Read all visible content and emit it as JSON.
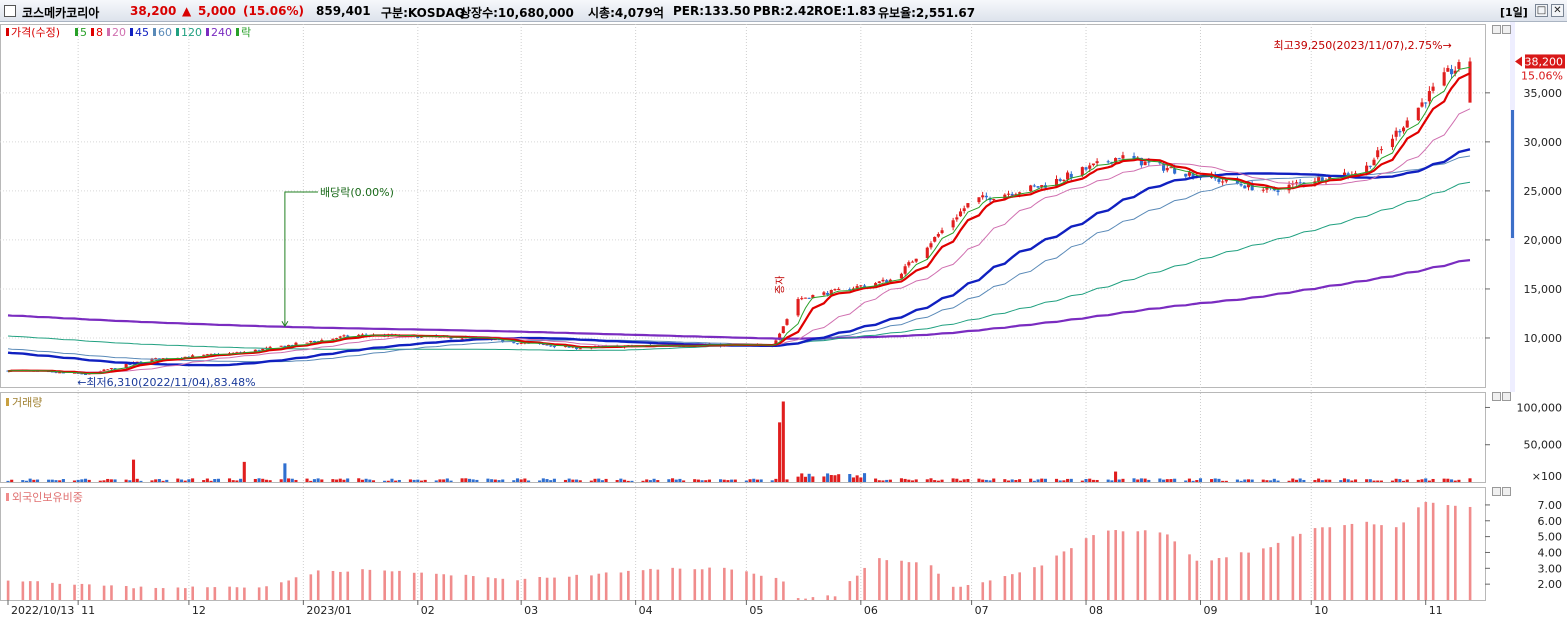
{
  "header": {
    "stock_name": "코스메카코리아",
    "price": "38,200",
    "change_arrow": "▲",
    "change": "5,000",
    "change_pct": "(15.06%)",
    "volume": "859,401",
    "market": "구분:KOSDAQ",
    "shares": "상장수:10,680,000",
    "market_cap": "시총:4,079억",
    "per": "PER:133.50",
    "pbr": "PBR:2.42",
    "roe": "ROE:1.83",
    "holding": "유보율:2,551.67",
    "period": "[1일]",
    "btn_max": "□",
    "btn_close": "✕"
  },
  "colors": {
    "up": "#e01e1e",
    "down": "#2f6fd0",
    "ma5": "#28a028",
    "ma8": "#e00000",
    "ma20": "#d070b0",
    "ma45": "#1020c0",
    "ma60": "#5a8ab8",
    "ma120": "#20a080",
    "ma240": "#7a2cc0",
    "foreign": "#f08c8c"
  },
  "price_panel": {
    "legend": [
      {
        "label": "가격(수정)",
        "color": "#d80000"
      },
      {
        "label": "5",
        "color": "#28a028"
      },
      {
        "label": "8",
        "color": "#e00000"
      },
      {
        "label": "20",
        "color": "#d070b0"
      },
      {
        "label": "45",
        "color": "#1020c0"
      },
      {
        "label": "60",
        "color": "#5a8ab8"
      },
      {
        "label": "120",
        "color": "#20a080"
      },
      {
        "label": "240",
        "color": "#7a2cc0"
      },
      {
        "label": "락",
        "color": "#28a028"
      }
    ],
    "y_ticks": [
      "35,000",
      "30,000",
      "25,000",
      "20,000",
      "15,000",
      "10,000"
    ],
    "current_price_tag": "38,200",
    "current_pct": "15.06%",
    "high_note": "최고39,250(2023/11/07),2.75%→",
    "low_note": "←최저6,310(2022/11/04),83.48%",
    "dividend_note": "배당락(0.00%)",
    "increase_note": "증자"
  },
  "volume_panel": {
    "legend": "거래량",
    "y_ticks": [
      "100,000",
      "50,000",
      "×100"
    ]
  },
  "foreign_panel": {
    "legend": "외국인보유비중",
    "y_ticks": [
      "7.00",
      "6.00",
      "5.00",
      "4.00",
      "3.00",
      "2.00"
    ]
  },
  "x_axis": [
    "2022/10/13",
    "11",
    "12",
    "2023/01",
    "02",
    "03",
    "04",
    "05",
    "06",
    "07",
    "08",
    "09",
    "10",
    "11"
  ],
  "chart_data": {
    "type": "line",
    "title": "",
    "x_range": [
      "2022/10/13",
      "2023/11/13"
    ],
    "price_range": [
      6310,
      39250
    ],
    "close_anchors": [
      {
        "date": "2022/10/13",
        "value": 6700
      },
      {
        "date": "2022/11/04",
        "value": 6310
      },
      {
        "date": "2022/11/20",
        "value": 7800
      },
      {
        "date": "2022/12/15",
        "value": 8500
      },
      {
        "date": "2022/12/27",
        "value": 9200
      },
      {
        "date": "2023/01/15",
        "value": 10300
      },
      {
        "date": "2023/02/15",
        "value": 10000
      },
      {
        "date": "2023/03/15",
        "value": 9000
      },
      {
        "date": "2023/04/15",
        "value": 9300
      },
      {
        "date": "2023/05/08",
        "value": 9200
      },
      {
        "date": "2023/05/15",
        "value": 14000
      },
      {
        "date": "2023/06/10",
        "value": 16000
      },
      {
        "date": "2023/07/01",
        "value": 24000
      },
      {
        "date": "2023/07/20",
        "value": 25500
      },
      {
        "date": "2023/08/10",
        "value": 28500
      },
      {
        "date": "2023/09/01",
        "value": 26500
      },
      {
        "date": "2023/09/20",
        "value": 25000
      },
      {
        "date": "2023/10/05",
        "value": 26500
      },
      {
        "date": "2023/10/15",
        "value": 27000
      },
      {
        "date": "2023/11/07",
        "value": 37000
      },
      {
        "date": "2023/11/13",
        "value": 38200
      }
    ],
    "volume_ylim": [
      0,
      110000
    ],
    "foreign_ratio_ylim": [
      1.0,
      7.5
    ]
  }
}
